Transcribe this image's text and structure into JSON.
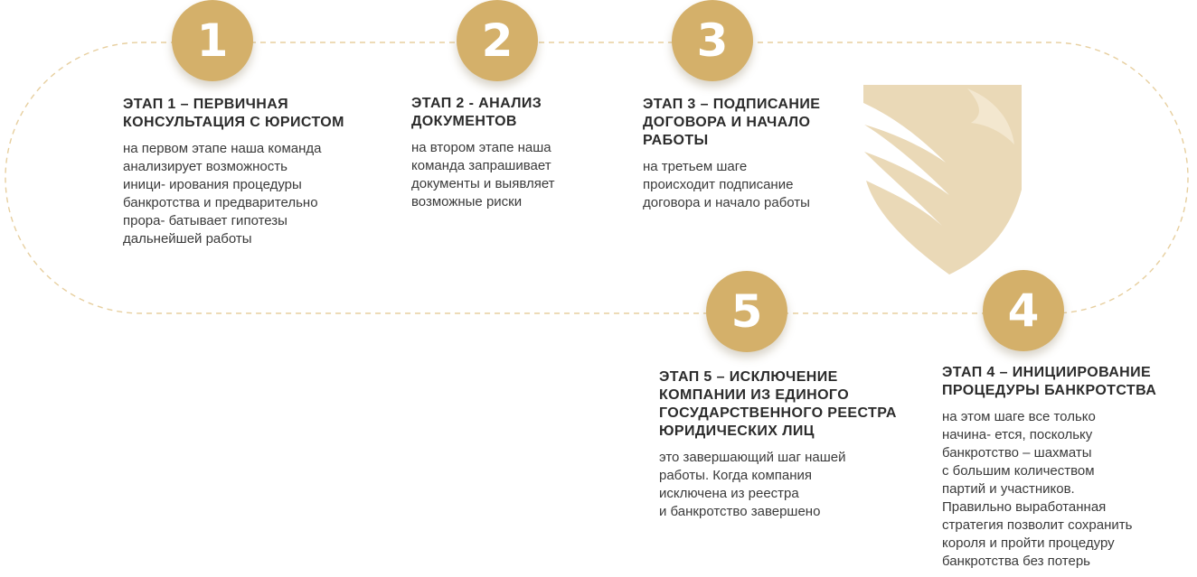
{
  "colors": {
    "accent": "#d4b06a",
    "emblem": "#ead9b7",
    "dashed_line": "#e7cf9f",
    "title_text": "#2b2b2b",
    "body_text": "#3a3a3a"
  },
  "emblem": {
    "icon": "shield-lion-icon"
  },
  "stages": [
    {
      "number": "1",
      "title_lines": [
        "ЭТАП 1 – ПЕРВИЧНАЯ",
        "КОНСУЛЬТАЦИЯ С ЮРИСТОМ"
      ],
      "text_lines": [
        "на первом этапе наша команда",
        "анализирует возможность",
        "иници- ирования процедуры",
        "банкротства и предварительно",
        "прора- батывает гипотезы",
        "дальнейшей работы"
      ]
    },
    {
      "number": "2",
      "title_lines": [
        "ЭТАП 2 - АНАЛИЗ",
        "ДОКУМЕНТОВ"
      ],
      "text_lines": [
        "на втором этапе наша",
        "команда запрашивает",
        "документы и выявляет",
        "возможные риски"
      ]
    },
    {
      "number": "3",
      "title_lines": [
        "ЭТАП 3 – ПОДПИСАНИЕ",
        "ДОГОВОРА И НАЧАЛО",
        "РАБОТЫ"
      ],
      "text_lines": [
        "на третьем шаге",
        "происходит подписание",
        "договора и начало работы"
      ]
    },
    {
      "number": "4",
      "title_lines": [
        "ЭТАП 4 – ИНИЦИИРОВАНИЕ",
        "ПРОЦЕДУРЫ БАНКРОТСТВА"
      ],
      "text_lines": [
        "на этом шаге все только",
        "начина- ется, поскольку",
        "банкротство – шахматы",
        "с большим количеством",
        "партий и участников.",
        "Правильно выработанная",
        "стратегия позволит сохранить",
        "короля и пройти процедуру",
        "банкротства без потерь"
      ]
    },
    {
      "number": "5",
      "title_lines": [
        "ЭТАП 5 – ИСКЛЮЧЕНИЕ",
        "КОМПАНИИ ИЗ ЕДИНОГО",
        "ГОСУДАРСТВЕННОГО РЕЕСТРА",
        "ЮРИДИЧЕСКИХ ЛИЦ"
      ],
      "text_lines": [
        "это завершающий шаг нашей",
        "работы. Когда компания",
        "исключена из реестра",
        "и банкротство завершено"
      ]
    }
  ]
}
